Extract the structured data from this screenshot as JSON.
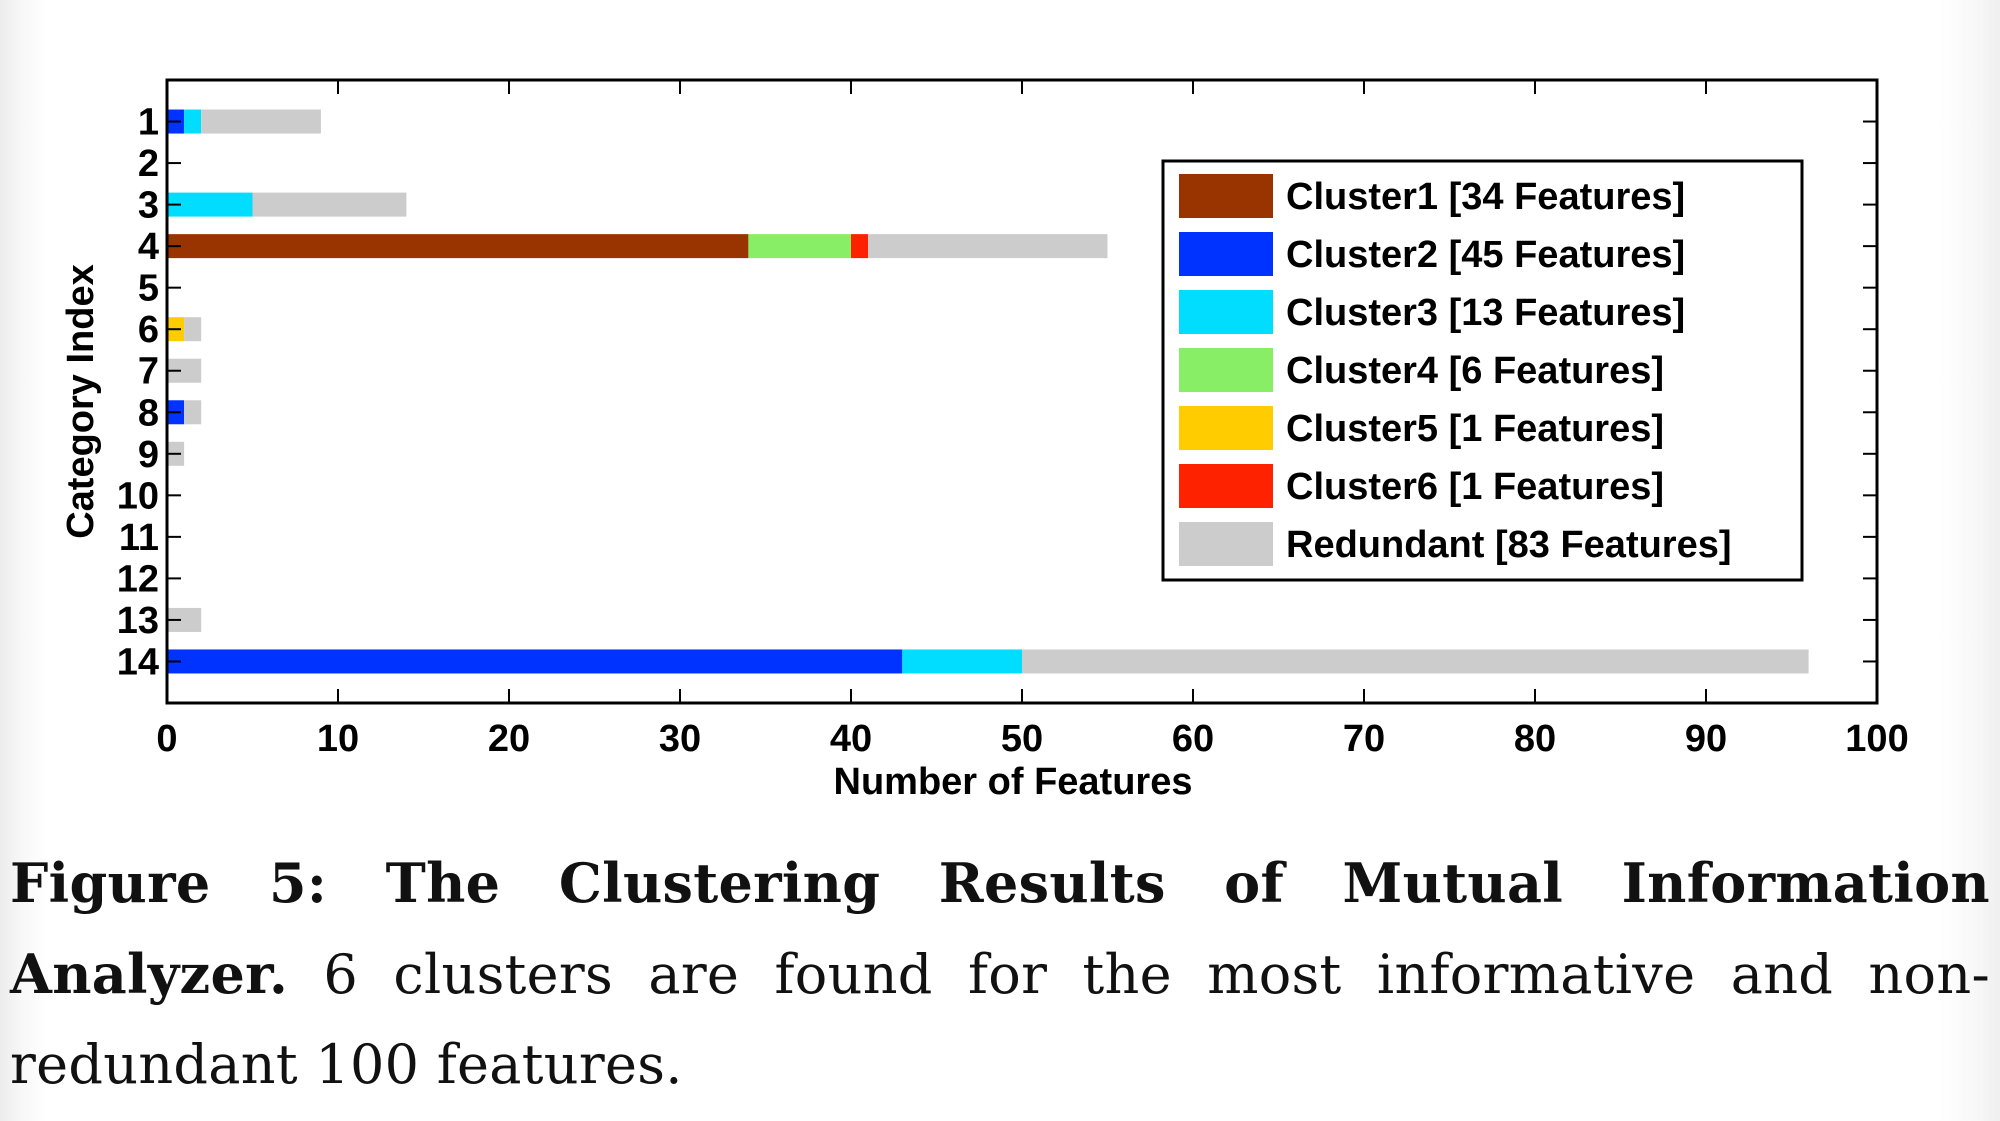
{
  "chart_data": {
    "type": "bar",
    "orientation": "horizontal",
    "stacked": true,
    "xlabel": "Number of Features",
    "ylabel": "Category Index",
    "xlim": [
      0,
      100
    ],
    "x_ticks": [
      "0",
      "10",
      "20",
      "30",
      "40",
      "50",
      "60",
      "70",
      "80",
      "90",
      "100"
    ],
    "categories": [
      "1",
      "2",
      "3",
      "4",
      "5",
      "6",
      "7",
      "8",
      "9",
      "10",
      "11",
      "12",
      "13",
      "14"
    ],
    "series": [
      {
        "name": "Cluster1 [34 Features]",
        "color": "#993300",
        "values": [
          0,
          0,
          0,
          34,
          0,
          0,
          0,
          0,
          0,
          0,
          0,
          0,
          0,
          0
        ]
      },
      {
        "name": "Cluster2 [45 Features]",
        "color": "#0033ff",
        "values": [
          1,
          0,
          0,
          0,
          0,
          0,
          0,
          1,
          0,
          0,
          0,
          0,
          0,
          43
        ]
      },
      {
        "name": "Cluster3 [13 Features]",
        "color": "#00ddff",
        "values": [
          1,
          0,
          5,
          0,
          0,
          0,
          0,
          0,
          0,
          0,
          0,
          0,
          0,
          7
        ]
      },
      {
        "name": "Cluster4 [6 Features]",
        "color": "#88ee66",
        "values": [
          0,
          0,
          0,
          6,
          0,
          0,
          0,
          0,
          0,
          0,
          0,
          0,
          0,
          0
        ]
      },
      {
        "name": "Cluster5 [1 Features]",
        "color": "#ffcc00",
        "values": [
          0,
          0,
          0,
          0,
          0,
          1,
          0,
          0,
          0,
          0,
          0,
          0,
          0,
          0
        ]
      },
      {
        "name": "Cluster6 [1 Features]",
        "color": "#ff2200",
        "values": [
          0,
          0,
          0,
          1,
          0,
          0,
          0,
          0,
          0,
          0,
          0,
          0,
          0,
          0
        ]
      },
      {
        "name": "Redundant [83 Features]",
        "color": "#cccccc",
        "values": [
          7,
          0,
          9,
          14,
          0,
          1,
          2,
          1,
          1,
          0,
          0,
          0,
          2,
          46
        ]
      }
    ],
    "legend_position": "upper-right"
  },
  "caption": {
    "label": "Figure 5: The Clustering Results of Mutual Information Analyzer.",
    "text": "6 clusters are found for the most informative and non-redundant 100 features."
  }
}
